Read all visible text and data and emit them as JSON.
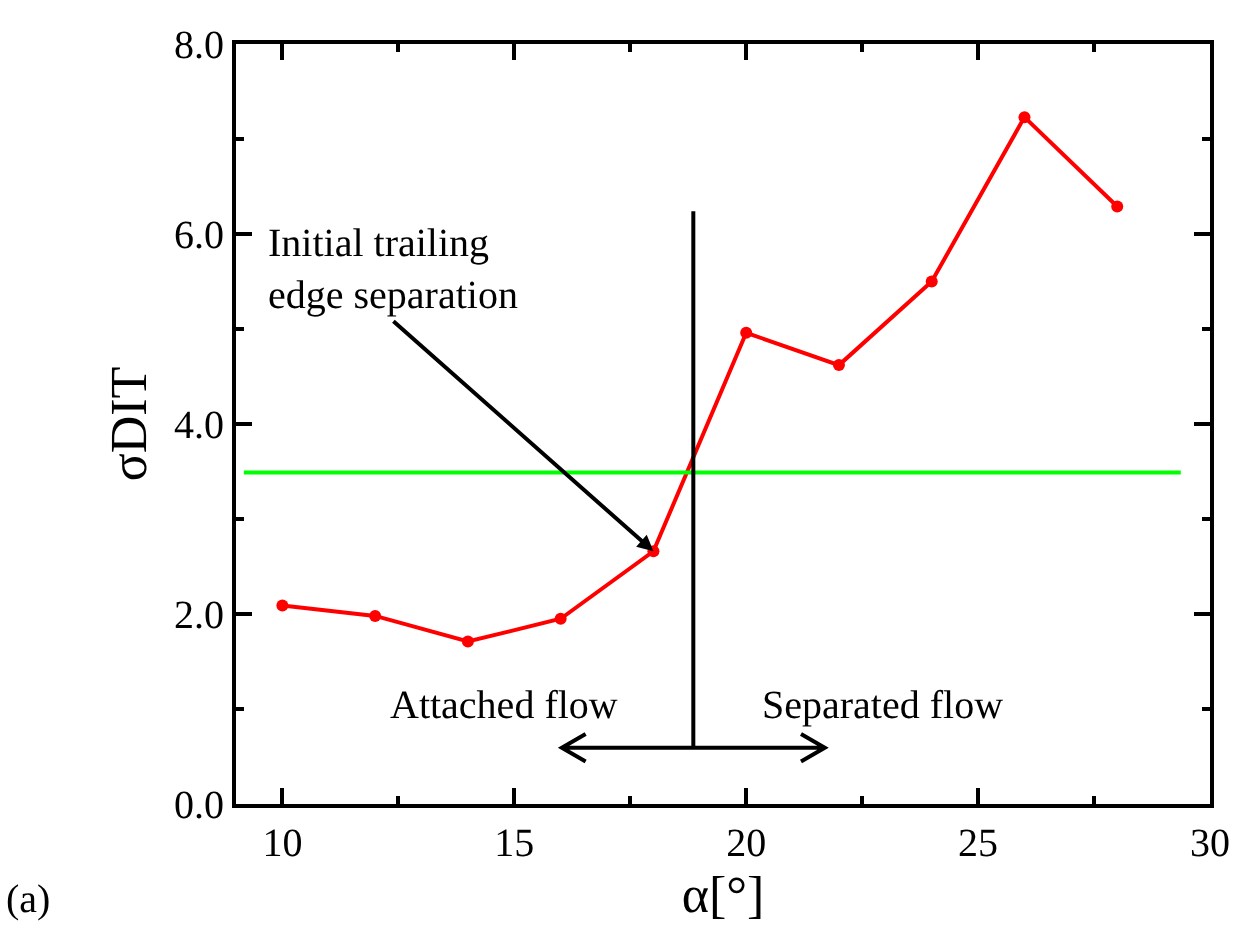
{
  "chart_data": {
    "type": "line",
    "xlabel": "α[°]",
    "ylabel": "σDIT",
    "x": [
      10,
      12,
      14,
      16,
      18,
      20,
      22,
      24,
      26,
      28
    ],
    "series": [
      {
        "color": "#ff0000",
        "values": [
          2.09,
          1.98,
          1.71,
          1.95,
          2.66,
          4.96,
          4.62,
          5.5,
          7.23,
          6.29
        ]
      }
    ],
    "marker": "circle",
    "line_style": "solid",
    "xlim": [
      9,
      30
    ],
    "xticks": [
      10,
      15,
      20,
      25,
      30
    ],
    "ylim": [
      0,
      8
    ],
    "yticks": [
      {
        "value": 0,
        "label": "0.0"
      },
      {
        "value": 2,
        "label": "2.0"
      },
      {
        "value": 4,
        "label": "4.0"
      },
      {
        "value": 6,
        "label": "6.0"
      },
      {
        "value": 8,
        "label": "8.0"
      }
    ],
    "ref_lines": [
      {
        "axis": "y",
        "value": 3.49,
        "color": "#00ff00",
        "line_style": "solid"
      },
      {
        "axis": "x",
        "value": 18.86,
        "color": "#000000",
        "line_style": "solid"
      }
    ],
    "annotations": [
      {
        "text": "Initial trailing\nedge separation",
        "x": 18,
        "y": 2.66
      },
      "Attached flow",
      "Separated flow",
      "(a)"
    ],
    "grid": false
  }
}
